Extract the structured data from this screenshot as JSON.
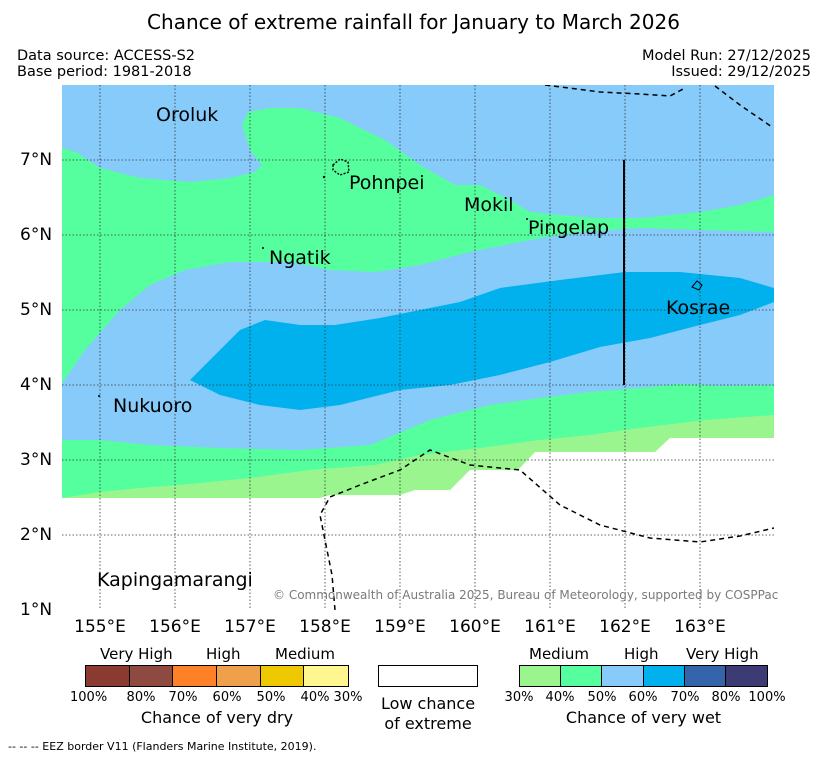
{
  "title": "Chance of extreme rainfall for January to March 2026",
  "header": {
    "data_source": "Data source: ACCESS-S2",
    "base_period": "Base period: 1981-2018",
    "model_run": "Model Run: 27/12/2025",
    "issued": "Issued: 29/12/2025"
  },
  "map": {
    "lon_range": [
      154.5,
      164.0
    ],
    "lat_range": [
      1.0,
      7.95
    ],
    "x_ticks": [
      "155°E",
      "156°E",
      "157°E",
      "158°E",
      "159°E",
      "160°E",
      "161°E",
      "162°E",
      "163°E"
    ],
    "y_ticks": [
      "1°N",
      "2°N",
      "3°N",
      "4°N",
      "5°N",
      "6°N",
      "7°N"
    ],
    "places": [
      {
        "name": "Oroluk",
        "lon": 155.8,
        "lat": 7.55
      },
      {
        "name": "Pohnpei",
        "lon": 158.33,
        "lat": 6.9
      },
      {
        "name": "Mokil",
        "lon": 159.78,
        "lat": 6.68
      },
      {
        "name": "Pingelap",
        "lon": 160.7,
        "lat": 6.22
      },
      {
        "name": "Ngatik",
        "lon": 157.15,
        "lat": 5.8
      },
      {
        "name": "Kosrae",
        "lon": 162.95,
        "lat": 4.97
      },
      {
        "name": "Nukuoro",
        "lon": 154.8,
        "lat": 3.85
      },
      {
        "name": "Kapingamarangi",
        "lon": 154.8,
        "lat": 1.25
      }
    ],
    "copyright": "© Commonwealth of Australia 2025, Bureau of Meteorology, supported by COSPPac"
  },
  "colors": {
    "very_dry": [
      "#8b3a32",
      "#8e4a40",
      "#ff8127",
      "#f0a04b",
      "#eec800",
      "#fff68f"
    ],
    "low_chance": "#ffffff",
    "very_wet": [
      "#9bf58f",
      "#55ff9d",
      "#87cbfb",
      "#00b1ee",
      "#3465ab",
      "#3c3b74"
    ]
  },
  "legend": {
    "dry": {
      "levels": [
        "Very High",
        "High",
        "Medium"
      ],
      "percents": [
        "100%",
        "80%",
        "70%",
        "60%",
        "50%",
        "40%",
        "30%"
      ],
      "caption": "Chance of very dry"
    },
    "low": {
      "caption_line1": "Low chance",
      "caption_line2": "of extreme"
    },
    "wet": {
      "levels": [
        "Medium",
        "High",
        "Very High"
      ],
      "percents": [
        "30%",
        "40%",
        "50%",
        "60%",
        "70%",
        "80%",
        "100%"
      ],
      "caption": "Chance of very wet"
    }
  },
  "footer": "--  --  -- EEZ border V11 (Flanders Marine Institute, 2019)."
}
